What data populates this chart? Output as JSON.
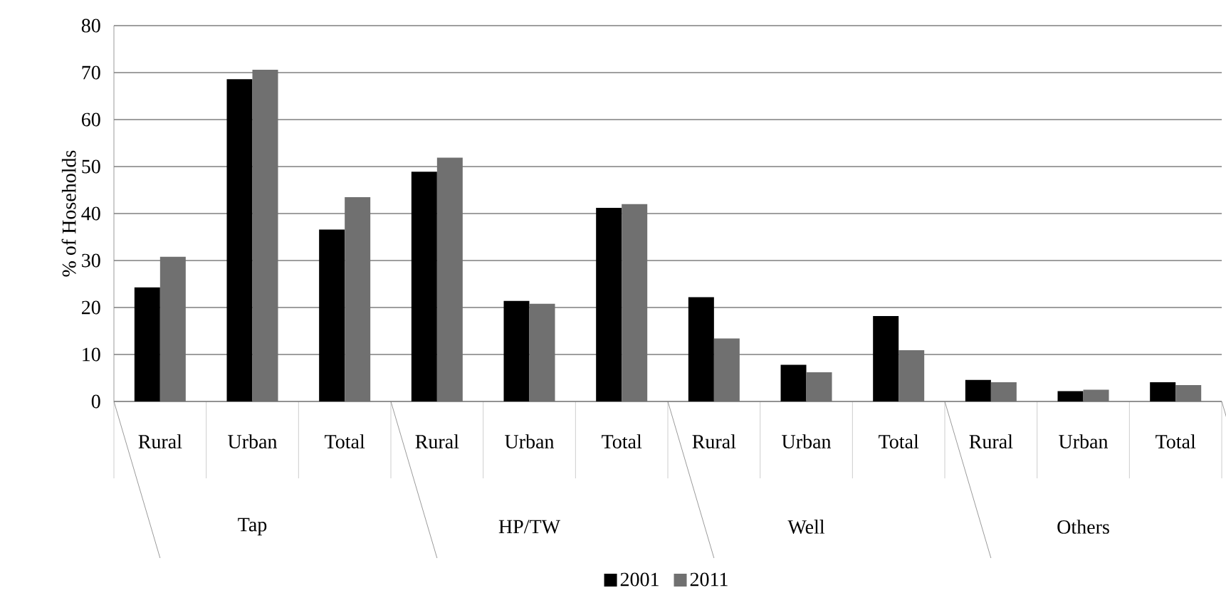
{
  "chart_data": {
    "type": "bar",
    "ylabel": "% of Hoseholds",
    "categories": [
      "Rural",
      "Urban",
      "Total",
      "Rural",
      "Urban",
      "Total",
      "Rural",
      "Urban",
      "Total",
      "Rural",
      "Urban",
      "Total"
    ],
    "annotations": [
      "Tap",
      "HP/TW",
      "Well",
      "Others"
    ],
    "series": [
      {
        "name": "2001",
        "color": "#000000",
        "values": [
          24.3,
          68.6,
          36.6,
          48.9,
          21.4,
          41.2,
          22.2,
          7.8,
          18.2,
          4.6,
          2.2,
          4.1
        ]
      },
      {
        "name": "2011",
        "color": "#707070",
        "values": [
          30.8,
          70.6,
          43.5,
          51.9,
          20.8,
          42.0,
          13.4,
          6.2,
          10.9,
          4.1,
          2.5,
          3.5
        ]
      }
    ],
    "ylim": [
      0,
      80
    ],
    "yticks": [
      0,
      10,
      20,
      30,
      40,
      50,
      60,
      70,
      80
    ],
    "grid": "y",
    "legend": "bottom"
  }
}
